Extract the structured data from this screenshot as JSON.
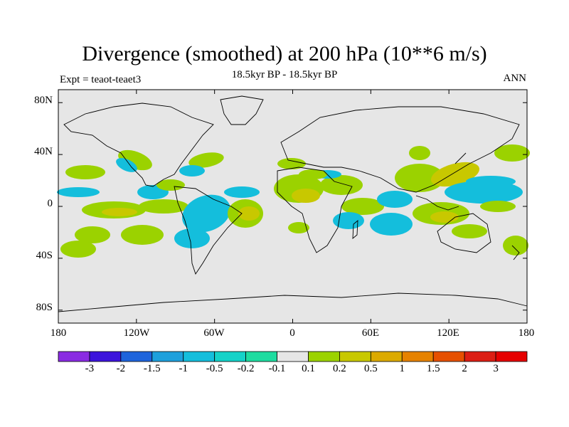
{
  "title": "Divergence (smoothed) at 200 hPa (10**6 m/s)",
  "subtitle": "18.5kyr BP - 18.5kyr BP",
  "left_string": "Expt = teaot-teaet3",
  "right_string": "ANN",
  "y_ticks": [
    "80N",
    "40N",
    "0",
    "40S",
    "80S"
  ],
  "x_ticks": [
    "180",
    "120W",
    "60W",
    "0",
    "60E",
    "120E",
    "180"
  ],
  "colorbar": {
    "labels": [
      "-3",
      "-2",
      "-1.5",
      "-1",
      "-0.5",
      "-0.2",
      "-0.1",
      "0.1",
      "0.2",
      "0.5",
      "1",
      "1.5",
      "2",
      "3"
    ],
    "colors": [
      "#8a2be2",
      "#3c14dc",
      "#1e64dc",
      "#1ea0dc",
      "#14bedc",
      "#14d2c8",
      "#1edca0",
      "#e6e6e6",
      "#9bd200",
      "#c8c800",
      "#dcaa00",
      "#e68200",
      "#e65000",
      "#dc1e14",
      "#e60000"
    ]
  },
  "colors": {
    "ocean_neutral": "#e6e6e6",
    "pos_light": "#9bd200",
    "pos_mid": "#c8c800",
    "neg_light": "#1edca0",
    "neg_mid": "#14bedc",
    "coast": "#000000"
  }
}
